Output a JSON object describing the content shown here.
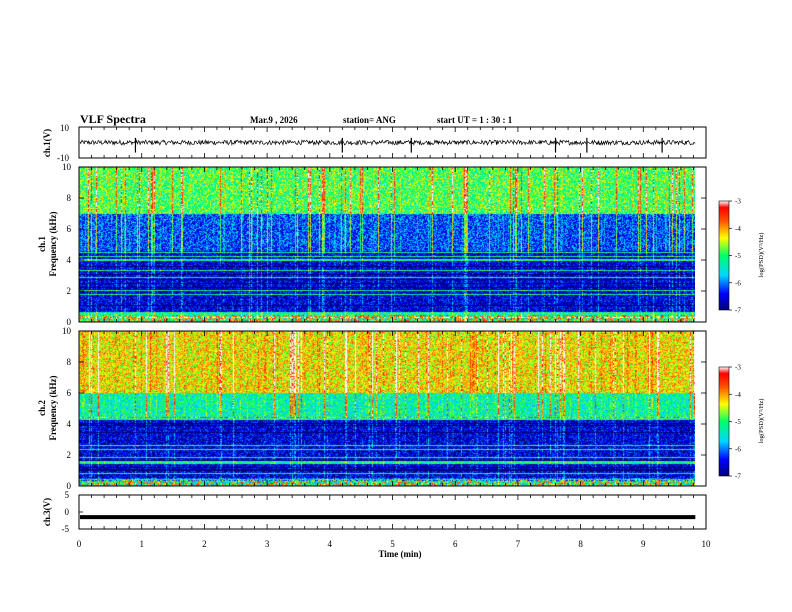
{
  "header": {
    "title": "VLF Spectra",
    "date": "Mar.9  , 2026",
    "station": "station= ANG",
    "start_ut": "start  UT =   1 : 30 : 1"
  },
  "chart_data": [
    {
      "type": "line",
      "name": "ch1-waveform",
      "ylabel": "ch.1(V)",
      "ylim": [
        -10,
        10
      ],
      "yticks": [
        10,
        -10
      ],
      "baseline": 0,
      "noise_amplitude": 1.5,
      "spikes_at_min": [
        0.9,
        5.3,
        7.6,
        8.1,
        4.2,
        9.3
      ]
    },
    {
      "type": "heatmap",
      "name": "ch1-spectrogram",
      "ylabel": "ch.1\nFrequency (kHz)",
      "ylabel_lines": [
        "ch.1",
        "Frequency (kHz)"
      ],
      "ylim": [
        0,
        10
      ],
      "yticks": [
        0,
        2,
        4,
        6,
        8,
        10
      ],
      "colorbar": {
        "ticks": [
          -3,
          -4,
          -5,
          -6,
          -7
        ],
        "label": "log(PSD)(V²/Hz)"
      },
      "bands": [
        {
          "from": 0,
          "to": 0.6,
          "level": -5.2
        },
        {
          "from": 0.6,
          "to": 4.6,
          "level": -6.6
        },
        {
          "from": 4.6,
          "to": 7.0,
          "level": -6.2
        },
        {
          "from": 7.0,
          "to": 10,
          "level": -4.9
        }
      ]
    },
    {
      "type": "heatmap",
      "name": "ch2-spectrogram",
      "ylabel": "ch.2\nFrequency (kHz)",
      "ylabel_lines": [
        "ch.2",
        "Frequency (kHz)"
      ],
      "ylim": [
        0,
        10
      ],
      "yticks": [
        0,
        2,
        4,
        6,
        8,
        10
      ],
      "colorbar": {
        "ticks": [
          -3,
          -4,
          -5,
          -6,
          -7
        ],
        "label": "log(PSD)(V²/Hz)"
      },
      "bands": [
        {
          "from": 0,
          "to": 0.5,
          "level": -5.4
        },
        {
          "from": 0.5,
          "to": 4.3,
          "level": -6.6
        },
        {
          "from": 4.3,
          "to": 6.0,
          "level": -5.3
        },
        {
          "from": 6.0,
          "to": 10,
          "level": -4.3
        }
      ]
    },
    {
      "type": "line",
      "name": "ch3-waveform",
      "ylabel": "ch.3(V)",
      "ylim": [
        -5,
        5
      ],
      "yticks": [
        5,
        0,
        -5
      ],
      "baseline": -1.5
    }
  ],
  "x_axis": {
    "label": "Time (min)",
    "range": [
      0,
      10
    ],
    "ticks": [
      "0",
      "1",
      "2",
      "3",
      "4",
      "5",
      "6",
      "7",
      "8",
      "9",
      "10"
    ],
    "data_end": 9.83
  }
}
